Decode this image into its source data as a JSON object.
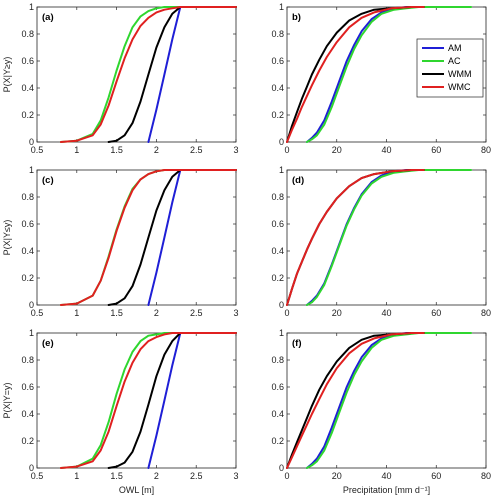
{
  "chart_data": [
    {
      "type": "line",
      "panel": "(a)",
      "xlim": [
        0.5,
        3
      ],
      "ylim": [
        0,
        1
      ],
      "xticks": [
        "0.5",
        "1",
        "1.5",
        "2",
        "2.5",
        "3"
      ],
      "yticks": [
        "0",
        "0.2",
        "0.4",
        "0.6",
        "0.8",
        "1"
      ],
      "ylabel": "P(X|Y≥y)",
      "xlabel": "",
      "series": [
        {
          "name": "AM",
          "color": "#1f1fd6",
          "x": [
            1.9,
            2.0,
            2.1,
            2.2,
            2.3,
            3.0
          ],
          "y": [
            0,
            0.24,
            0.5,
            0.76,
            1.0,
            1.0
          ]
        },
        {
          "name": "AC",
          "color": "#2fd62f",
          "x": [
            0.8,
            1.0,
            1.2,
            1.3,
            1.4,
            1.5,
            1.6,
            1.7,
            1.8,
            1.9,
            2.0,
            2.1,
            2.3,
            3.0
          ],
          "y": [
            0,
            0.01,
            0.06,
            0.16,
            0.33,
            0.53,
            0.71,
            0.85,
            0.93,
            0.97,
            0.99,
            1.0,
            1.0,
            1.0
          ]
        },
        {
          "name": "WMM",
          "color": "#000000",
          "x": [
            1.4,
            1.5,
            1.6,
            1.7,
            1.8,
            1.9,
            2.0,
            2.1,
            2.2,
            2.3,
            3.0
          ],
          "y": [
            0,
            0.01,
            0.05,
            0.14,
            0.3,
            0.5,
            0.7,
            0.85,
            0.95,
            1.0,
            1.0
          ]
        },
        {
          "name": "WMC",
          "color": "#e02020",
          "x": [
            0.8,
            1.0,
            1.2,
            1.3,
            1.4,
            1.5,
            1.6,
            1.7,
            1.8,
            1.9,
            2.0,
            2.1,
            2.2,
            2.3,
            3.0
          ],
          "y": [
            0,
            0.01,
            0.05,
            0.13,
            0.27,
            0.45,
            0.62,
            0.76,
            0.86,
            0.92,
            0.96,
            0.98,
            0.99,
            1.0,
            1.0
          ]
        }
      ]
    },
    {
      "type": "line",
      "panel": "b)",
      "xlim": [
        0,
        80
      ],
      "ylim": [
        0,
        1
      ],
      "xticks": [
        "0",
        "20",
        "40",
        "60",
        "80"
      ],
      "yticks": [
        "0",
        "0.2",
        "0.4",
        "0.6",
        "0.8",
        "1"
      ],
      "ylabel": "",
      "xlabel": "",
      "legend": {
        "position": "top-right",
        "entries": [
          "AM",
          "AC",
          "WMM",
          "WMC"
        ]
      },
      "series": [
        {
          "name": "AM",
          "color": "#1f1fd6",
          "x": [
            8,
            10,
            12,
            15,
            18,
            21,
            24,
            27,
            30,
            34,
            38,
            43,
            48,
            53
          ],
          "y": [
            0,
            0.03,
            0.07,
            0.16,
            0.3,
            0.45,
            0.6,
            0.72,
            0.82,
            0.91,
            0.96,
            0.99,
            1.0,
            1.0
          ]
        },
        {
          "name": "AC",
          "color": "#2fd62f",
          "x": [
            8,
            10,
            12,
            15,
            18,
            21,
            24,
            27,
            30,
            34,
            38,
            43,
            48,
            53,
            74
          ],
          "y": [
            0,
            0.02,
            0.05,
            0.13,
            0.26,
            0.41,
            0.56,
            0.69,
            0.79,
            0.89,
            0.95,
            0.98,
            0.99,
            1.0,
            1.0
          ]
        },
        {
          "name": "WMM",
          "color": "#000000",
          "x": [
            0,
            2,
            4,
            6,
            8,
            10,
            13,
            16,
            20,
            25,
            30,
            35,
            42,
            50,
            55
          ],
          "y": [
            0,
            0.12,
            0.22,
            0.32,
            0.41,
            0.5,
            0.61,
            0.71,
            0.81,
            0.9,
            0.95,
            0.98,
            0.99,
            1.0,
            1.0
          ]
        },
        {
          "name": "WMC",
          "color": "#e02020",
          "x": [
            0,
            2,
            4,
            6,
            8,
            10,
            13,
            16,
            20,
            25,
            30,
            35,
            42,
            50,
            55
          ],
          "y": [
            0,
            0.09,
            0.17,
            0.26,
            0.34,
            0.42,
            0.53,
            0.63,
            0.74,
            0.85,
            0.92,
            0.96,
            0.99,
            1.0,
            1.0
          ]
        }
      ]
    },
    {
      "type": "line",
      "panel": "(c)",
      "xlim": [
        0.5,
        3
      ],
      "ylim": [
        0,
        1
      ],
      "xticks": [
        "0.5",
        "1",
        "1.5",
        "2",
        "2.5",
        "3"
      ],
      "yticks": [
        "0",
        "0.2",
        "0.4",
        "0.6",
        "0.8",
        "1"
      ],
      "ylabel": "P(X|Y≤y)",
      "xlabel": "",
      "series": [
        {
          "name": "AM",
          "color": "#1f1fd6",
          "x": [
            1.9,
            2.0,
            2.1,
            2.2,
            2.3,
            3.0
          ],
          "y": [
            0,
            0.24,
            0.5,
            0.76,
            1.0,
            1.0
          ]
        },
        {
          "name": "AC",
          "color": "#2fd62f",
          "x": [
            0.8,
            1.0,
            1.2,
            1.3,
            1.4,
            1.5,
            1.6,
            1.7,
            1.8,
            1.9,
            2.0,
            2.1,
            2.3,
            3.0
          ],
          "y": [
            0,
            0.01,
            0.07,
            0.18,
            0.36,
            0.56,
            0.73,
            0.86,
            0.93,
            0.97,
            0.99,
            1.0,
            1.0,
            1.0
          ]
        },
        {
          "name": "WMM",
          "color": "#000000",
          "x": [
            1.4,
            1.5,
            1.6,
            1.7,
            1.8,
            1.9,
            2.0,
            2.1,
            2.2,
            2.3,
            3.0
          ],
          "y": [
            0,
            0.01,
            0.05,
            0.14,
            0.3,
            0.5,
            0.7,
            0.85,
            0.95,
            1.0,
            1.0
          ]
        },
        {
          "name": "WMC",
          "color": "#e02020",
          "x": [
            0.8,
            1.0,
            1.2,
            1.3,
            1.4,
            1.5,
            1.6,
            1.7,
            1.8,
            1.9,
            2.0,
            2.1,
            2.3,
            3.0
          ],
          "y": [
            0,
            0.01,
            0.07,
            0.18,
            0.35,
            0.55,
            0.72,
            0.85,
            0.93,
            0.97,
            0.99,
            1.0,
            1.0,
            1.0
          ]
        }
      ]
    },
    {
      "type": "line",
      "panel": "(d)",
      "xlim": [
        0,
        80
      ],
      "ylim": [
        0,
        1
      ],
      "xticks": [
        "0",
        "20",
        "40",
        "60",
        "80"
      ],
      "yticks": [
        "0",
        "0.2",
        "0.4",
        "0.6",
        "0.8",
        "1"
      ],
      "ylabel": "",
      "xlabel": "",
      "series": [
        {
          "name": "AM",
          "color": "#1f1fd6",
          "x": [
            8,
            10,
            12,
            15,
            18,
            21,
            24,
            27,
            30,
            34,
            38,
            43,
            48,
            53
          ],
          "y": [
            0,
            0.03,
            0.07,
            0.16,
            0.3,
            0.45,
            0.6,
            0.72,
            0.82,
            0.91,
            0.96,
            0.99,
            1.0,
            1.0
          ]
        },
        {
          "name": "AC",
          "color": "#2fd62f",
          "x": [
            8,
            10,
            12,
            15,
            18,
            21,
            24,
            27,
            30,
            34,
            38,
            43,
            48,
            53,
            74
          ],
          "y": [
            0,
            0.02,
            0.06,
            0.15,
            0.29,
            0.44,
            0.59,
            0.71,
            0.81,
            0.9,
            0.95,
            0.98,
            0.99,
            1.0,
            1.0
          ]
        },
        {
          "name": "WMM",
          "color": "#000000",
          "x": [
            0,
            2,
            4,
            6,
            8,
            10,
            13,
            16,
            20,
            25,
            30,
            35,
            42,
            50,
            55
          ],
          "y": [
            0,
            0.12,
            0.23,
            0.32,
            0.41,
            0.49,
            0.6,
            0.69,
            0.79,
            0.88,
            0.94,
            0.97,
            0.99,
            1.0,
            1.0
          ]
        },
        {
          "name": "WMC",
          "color": "#e02020",
          "x": [
            0,
            2,
            4,
            6,
            8,
            10,
            13,
            16,
            20,
            25,
            30,
            35,
            42,
            50,
            55
          ],
          "y": [
            0,
            0.12,
            0.23,
            0.32,
            0.41,
            0.49,
            0.6,
            0.69,
            0.79,
            0.88,
            0.94,
            0.97,
            0.99,
            1.0,
            1.0
          ]
        }
      ]
    },
    {
      "type": "line",
      "panel": "(e)",
      "xlim": [
        0.5,
        3
      ],
      "ylim": [
        0,
        1
      ],
      "xticks": [
        "0.5",
        "1",
        "1.5",
        "2",
        "2.5",
        "3"
      ],
      "yticks": [
        "0",
        "0.2",
        "0.4",
        "0.6",
        "0.8",
        "1"
      ],
      "ylabel": "P(X|Y=y)",
      "xlabel": "OWL [m]",
      "series": [
        {
          "name": "AM",
          "color": "#1f1fd6",
          "x": [
            1.9,
            2.0,
            2.1,
            2.2,
            2.3,
            3.0
          ],
          "y": [
            0,
            0.24,
            0.5,
            0.76,
            1.0,
            1.0
          ]
        },
        {
          "name": "AC",
          "color": "#2fd62f",
          "x": [
            0.8,
            1.0,
            1.2,
            1.3,
            1.4,
            1.5,
            1.6,
            1.7,
            1.8,
            1.9,
            2.0,
            2.1,
            2.3,
            3.0
          ],
          "y": [
            0,
            0.01,
            0.07,
            0.17,
            0.34,
            0.55,
            0.73,
            0.86,
            0.94,
            0.98,
            0.99,
            1.0,
            1.0,
            1.0
          ]
        },
        {
          "name": "WMM",
          "color": "#000000",
          "x": [
            1.4,
            1.5,
            1.6,
            1.7,
            1.8,
            1.9,
            2.0,
            2.1,
            2.2,
            2.3,
            3.0
          ],
          "y": [
            0,
            0.01,
            0.04,
            0.12,
            0.27,
            0.47,
            0.68,
            0.84,
            0.94,
            1.0,
            1.0
          ]
        },
        {
          "name": "WMC",
          "color": "#e02020",
          "x": [
            0.8,
            1.0,
            1.2,
            1.3,
            1.4,
            1.5,
            1.6,
            1.7,
            1.8,
            1.9,
            2.0,
            2.1,
            2.2,
            2.3,
            3.0
          ],
          "y": [
            0,
            0.01,
            0.05,
            0.13,
            0.27,
            0.46,
            0.64,
            0.78,
            0.88,
            0.94,
            0.97,
            0.99,
            1.0,
            1.0,
            1.0
          ]
        }
      ]
    },
    {
      "type": "line",
      "panel": "(f)",
      "xlim": [
        0,
        80
      ],
      "ylim": [
        0,
        1
      ],
      "xticks": [
        "0",
        "20",
        "40",
        "60",
        "80"
      ],
      "yticks": [
        "0",
        "0.2",
        "0.4",
        "0.6",
        "0.8",
        "1"
      ],
      "ylabel": "",
      "xlabel": "Precipitation [mm d⁻¹]",
      "series": [
        {
          "name": "AM",
          "color": "#1f1fd6",
          "x": [
            8,
            10,
            12,
            15,
            18,
            21,
            24,
            27,
            30,
            34,
            38,
            43,
            48,
            53
          ],
          "y": [
            0,
            0.03,
            0.07,
            0.16,
            0.3,
            0.45,
            0.6,
            0.72,
            0.82,
            0.91,
            0.96,
            0.99,
            1.0,
            1.0
          ]
        },
        {
          "name": "AC",
          "color": "#2fd62f",
          "x": [
            8,
            10,
            12,
            15,
            18,
            21,
            24,
            27,
            30,
            34,
            38,
            43,
            48,
            53,
            74
          ],
          "y": [
            0,
            0.02,
            0.05,
            0.13,
            0.26,
            0.41,
            0.56,
            0.69,
            0.79,
            0.89,
            0.95,
            0.98,
            0.99,
            1.0,
            1.0
          ]
        },
        {
          "name": "WMM",
          "color": "#000000",
          "x": [
            0,
            2,
            4,
            6,
            8,
            10,
            13,
            16,
            20,
            25,
            30,
            35,
            42,
            50,
            55
          ],
          "y": [
            0,
            0.1,
            0.19,
            0.28,
            0.37,
            0.46,
            0.58,
            0.68,
            0.79,
            0.89,
            0.95,
            0.98,
            0.99,
            1.0,
            1.0
          ]
        },
        {
          "name": "WMC",
          "color": "#e02020",
          "x": [
            0,
            2,
            4,
            6,
            8,
            10,
            13,
            16,
            20,
            25,
            30,
            35,
            42,
            50,
            55
          ],
          "y": [
            0,
            0.08,
            0.16,
            0.24,
            0.32,
            0.4,
            0.51,
            0.62,
            0.74,
            0.85,
            0.92,
            0.96,
            0.99,
            1.0,
            1.0
          ]
        }
      ]
    }
  ]
}
